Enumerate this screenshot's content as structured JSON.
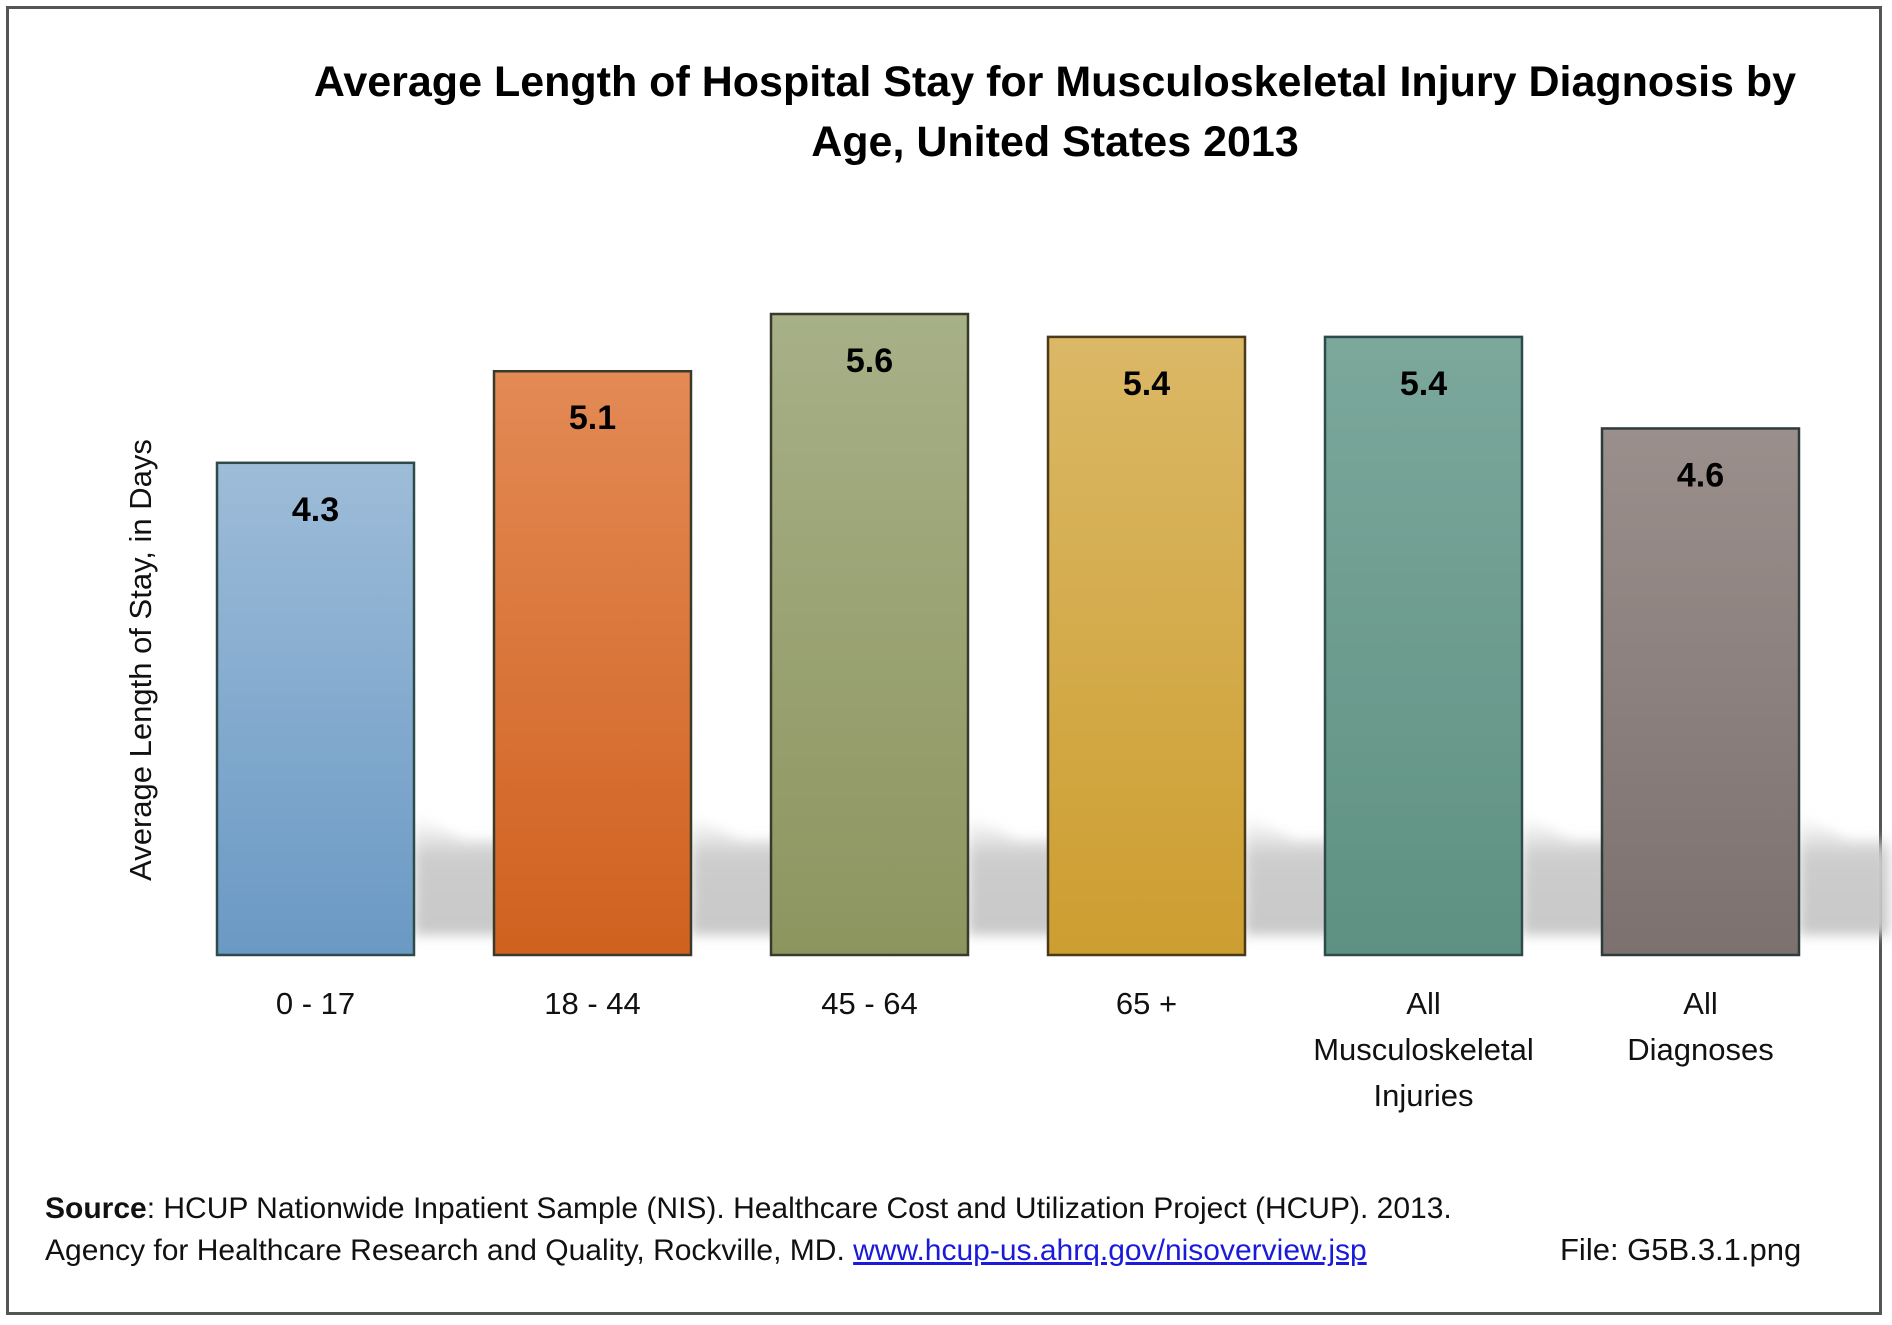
{
  "chart_data": {
    "type": "bar",
    "title_lines": [
      "Average Length of Hospital Stay for Musculoskeletal Injury Diagnosis by",
      "Age, United States 2013"
    ],
    "ylabel": "Average Length of Stay, in Days",
    "xlabel": "",
    "ylim": [
      0,
      5.6
    ],
    "grid": false,
    "legend": "none",
    "categories": [
      [
        "0 - 17"
      ],
      [
        "18 - 44"
      ],
      [
        "45 - 64"
      ],
      [
        "65 +"
      ],
      [
        "All",
        "Musculoskeletal",
        "Injuries"
      ],
      [
        "All",
        "Diagnoses"
      ]
    ],
    "values": [
      4.3,
      5.1,
      5.6,
      5.4,
      5.4,
      4.6
    ],
    "data_labels": [
      "4.3",
      "5.1",
      "5.6",
      "5.4",
      "5.4",
      "4.6"
    ],
    "colors": [
      {
        "top": "#9dbcd8",
        "bottom": "#6a99c4",
        "stroke": "#2f4a4a"
      },
      {
        "top": "#e38a55",
        "bottom": "#d0611f",
        "stroke": "#3a3a2a"
      },
      {
        "top": "#a7b087",
        "bottom": "#8d955f",
        "stroke": "#3a3a2a"
      },
      {
        "top": "#dbb866",
        "bottom": "#cd9e30",
        "stroke": "#4a3a1a"
      },
      {
        "top": "#7ca89c",
        "bottom": "#5e9182",
        "stroke": "#2f4a4a"
      },
      {
        "top": "#9b8f8c",
        "bottom": "#7d716f",
        "stroke": "#2f3a3a"
      }
    ]
  },
  "source": {
    "label": "Source",
    "line1_rest": ": HCUP Nationwide Inpatient Sample (NIS). Healthcare Cost and Utilization Project (HCUP). 2013.",
    "line2_text": "Agency for Healthcare Research and Quality, Rockville, MD. ",
    "link_text": "www.hcup-us.ahrq.gov/nisoverview.jsp"
  },
  "file_label": "File: G5B.3.1.png"
}
